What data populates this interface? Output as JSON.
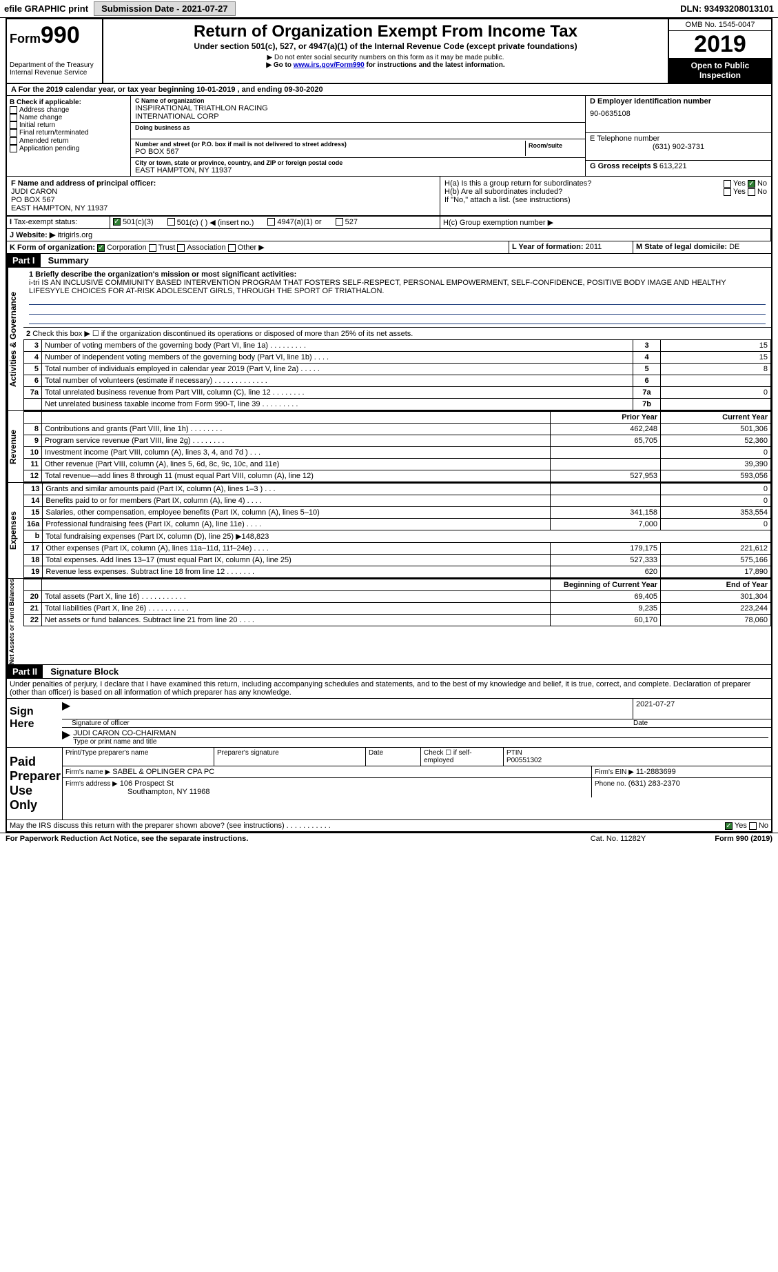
{
  "top": {
    "efile": "efile GRAPHIC print",
    "subdate_lbl": "Submission Date - 2021-07-27",
    "dln": "DLN: 93493208013101"
  },
  "header": {
    "form_word": "Form",
    "form_num": "990",
    "dept": "Department of the Treasury",
    "irs": "Internal Revenue Service",
    "title": "Return of Organization Exempt From Income Tax",
    "subtitle": "Under section 501(c), 527, or 4947(a)(1) of the Internal Revenue Code (except private foundations)",
    "note1": "▶ Do not enter social security numbers on this form as it may be made public.",
    "note2_pre": "▶ Go to ",
    "note2_link": "www.irs.gov/Form990",
    "note2_post": " for instructions and the latest information.",
    "omb": "OMB No. 1545-0047",
    "year": "2019",
    "open": "Open to Public Inspection"
  },
  "period": "A For the 2019 calendar year, or tax year beginning 10-01-2019  , and ending 09-30-2020",
  "sectionB": {
    "lbl": "B Check if applicable:",
    "items": [
      "Address change",
      "Name change",
      "Initial return",
      "Final return/terminated",
      "Amended return",
      "Application pending"
    ]
  },
  "sectionC": {
    "name_lbl": "C Name of organization",
    "name1": "INSPIRATIONAL TRIATHLON RACING",
    "name2": "INTERNATIONAL CORP",
    "dba_lbl": "Doing business as",
    "street_lbl": "Number and street (or P.O. box if mail is not delivered to street address)",
    "room_lbl": "Room/suite",
    "street": "PO BOX 567",
    "city_lbl": "City or town, state or province, country, and ZIP or foreign postal code",
    "city": "EAST HAMPTON, NY  11937"
  },
  "sectionD": {
    "lbl": "D Employer identification number",
    "val": "90-0635108"
  },
  "sectionE": {
    "lbl": "E Telephone number",
    "val": "(631) 902-3731"
  },
  "sectionG": {
    "lbl": "G Gross receipts $",
    "val": "613,221"
  },
  "sectionF": {
    "lbl": "F  Name and address of principal officer:",
    "name": "JUDI CARON",
    "addr1": "PO BOX 567",
    "addr2": "EAST HAMPTON, NY  11937"
  },
  "sectionH": {
    "a": "H(a)  Is this a group return for subordinates?",
    "b": "H(b)  Are all subordinates included?",
    "b_note": "If \"No,\" attach a list. (see instructions)",
    "c": "H(c)  Group exemption number ▶",
    "yes": "Yes",
    "no": "No"
  },
  "sectionI": {
    "lbl": "Tax-exempt status:",
    "opts": [
      "501(c)(3)",
      "501(c) (  ) ◀ (insert no.)",
      "4947(a)(1) or",
      "527"
    ]
  },
  "sectionJ": {
    "lbl": "J Website: ▶",
    "val": "itrigirls.org"
  },
  "sectionK": {
    "lbl": "K Form of organization:",
    "opts": [
      "Corporation",
      "Trust",
      "Association",
      "Other ▶"
    ]
  },
  "sectionL": {
    "lbl": "L Year of formation:",
    "val": "2011"
  },
  "sectionM": {
    "lbl": "M State of legal domicile:",
    "val": "DE"
  },
  "partI": {
    "num": "Part I",
    "title": "Summary"
  },
  "mission_lbl": "1  Briefly describe the organization's mission or most significant activities:",
  "mission": "i-tri IS AN INCLUSIVE COMMIUNITY BASED INTERVENTION PROGRAM THAT FOSTERS SELF-RESPECT, PERSONAL EMPOWERMENT, SELF-CONFIDENCE, POSITIVE BODY IMAGE AND HEALTHY LIFESYYLE CHOICES FOR AT-RISK ADOLESCENT GIRLS, THROUGH THE SPORT OF TRIATHALON.",
  "activities_lbl": "Activities & Governance",
  "revenue_lbl": "Revenue",
  "expenses_lbl": "Expenses",
  "netassets_lbl": "Net Assets or Fund Balances",
  "line2": "Check this box ▶ ☐ if the organization discontinued its operations or disposed of more than 25% of its net assets.",
  "gov_rows": [
    {
      "n": "3",
      "d": "Number of voting members of the governing body (Part VI, line 1a)  .  .  .  .  .  .  .  .  .",
      "r": "3",
      "v": "15"
    },
    {
      "n": "4",
      "d": "Number of independent voting members of the governing body (Part VI, line 1b)   .  .  .  .",
      "r": "4",
      "v": "15"
    },
    {
      "n": "5",
      "d": "Total number of individuals employed in calendar year 2019 (Part V, line 2a)  .  .  .  .  .",
      "r": "5",
      "v": "8"
    },
    {
      "n": "6",
      "d": "Total number of volunteers (estimate if necessary)   .  .  .  .  .  .  .  .  .  .  .  .  .",
      "r": "6",
      "v": ""
    },
    {
      "n": "7a",
      "d": "Total unrelated business revenue from Part VIII, column (C), line 12  .  .  .  .  .  .  .  .",
      "r": "7a",
      "v": "0"
    },
    {
      "n": "",
      "d": "Net unrelated business taxable income from Form 990-T, line 39  .  .  .  .  .  .  .  .  .",
      "r": "7b",
      "v": ""
    }
  ],
  "col_prior": "Prior Year",
  "col_current": "Current Year",
  "rev_rows": [
    {
      "n": "8",
      "d": "Contributions and grants (Part VIII, line 1h)   .  .  .  .  .  .  .  .",
      "p": "462,248",
      "c": "501,306"
    },
    {
      "n": "9",
      "d": "Program service revenue (Part VIII, line 2g)  .  .  .  .  .  .  .  .",
      "p": "65,705",
      "c": "52,360"
    },
    {
      "n": "10",
      "d": "Investment income (Part VIII, column (A), lines 3, 4, and 7d )  .  .  .",
      "p": "",
      "c": "0"
    },
    {
      "n": "11",
      "d": "Other revenue (Part VIII, column (A), lines 5, 6d, 8c, 9c, 10c, and 11e)",
      "p": "",
      "c": "39,390"
    },
    {
      "n": "12",
      "d": "Total revenue—add lines 8 through 11 (must equal Part VIII, column (A), line 12)",
      "p": "527,953",
      "c": "593,056"
    }
  ],
  "exp_rows": [
    {
      "n": "13",
      "d": "Grants and similar amounts paid (Part IX, column (A), lines 1–3 )  .  .  .",
      "p": "",
      "c": "0"
    },
    {
      "n": "14",
      "d": "Benefits paid to or for members (Part IX, column (A), line 4)  .  .  .  .",
      "p": "",
      "c": "0"
    },
    {
      "n": "15",
      "d": "Salaries, other compensation, employee benefits (Part IX, column (A), lines 5–10)",
      "p": "341,158",
      "c": "353,554"
    },
    {
      "n": "16a",
      "d": "Professional fundraising fees (Part IX, column (A), line 11e)  .  .  .  .",
      "p": "7,000",
      "c": "0"
    },
    {
      "n": "b",
      "d": "Total fundraising expenses (Part IX, column (D), line 25) ▶148,823",
      "p": "—",
      "c": "—"
    },
    {
      "n": "17",
      "d": "Other expenses (Part IX, column (A), lines 11a–11d, 11f–24e)  .  .  .  .",
      "p": "179,175",
      "c": "221,612"
    },
    {
      "n": "18",
      "d": "Total expenses. Add lines 13–17 (must equal Part IX, column (A), line 25)",
      "p": "527,333",
      "c": "575,166"
    },
    {
      "n": "19",
      "d": "Revenue less expenses. Subtract line 18 from line 12  .  .  .  .  .  .  .",
      "p": "620",
      "c": "17,890"
    }
  ],
  "col_begin": "Beginning of Current Year",
  "col_end": "End of Year",
  "net_rows": [
    {
      "n": "20",
      "d": "Total assets (Part X, line 16)  .  .  .  .  .  .  .  .  .  .  .",
      "p": "69,405",
      "c": "301,304"
    },
    {
      "n": "21",
      "d": "Total liabilities (Part X, line 26)  .  .  .  .  .  .  .  .  .  .",
      "p": "9,235",
      "c": "223,244"
    },
    {
      "n": "22",
      "d": "Net assets or fund balances. Subtract line 21 from line 20  .  .  .  .",
      "p": "60,170",
      "c": "78,060"
    }
  ],
  "partII": {
    "num": "Part II",
    "title": "Signature Block"
  },
  "penalty": "Under penalties of perjury, I declare that I have examined this return, including accompanying schedules and statements, and to the best of my knowledge and belief, it is true, correct, and complete. Declaration of preparer (other than officer) is based on all information of which preparer has any knowledge.",
  "sign": {
    "here": "Sign Here",
    "sig_lbl": "Signature of officer",
    "date_lbl": "Date",
    "date": "2021-07-27",
    "name": "JUDI CARON  CO-CHAIRMAN",
    "name_lbl": "Type or print name and title"
  },
  "paid": {
    "title": "Paid Preparer Use Only",
    "print_lbl": "Print/Type preparer's name",
    "sig_lbl": "Preparer's signature",
    "date_lbl": "Date",
    "check_lbl": "Check ☐ if self-employed",
    "ptin_lbl": "PTIN",
    "ptin": "P00551302",
    "firm_name_lbl": "Firm's name    ▶",
    "firm_name": "SABEL & OPLINGER CPA PC",
    "firm_ein_lbl": "Firm's EIN ▶",
    "firm_ein": "11-2883699",
    "firm_addr_lbl": "Firm's address ▶",
    "firm_addr1": "106 Prospect St",
    "firm_addr2": "Southampton, NY  11968",
    "phone_lbl": "Phone no.",
    "phone": "(631) 283-2370"
  },
  "discuss": "May the IRS discuss this return with the preparer shown above? (see instructions)   .  .  .  .  .  .  .  .  .  .  .",
  "footer": {
    "left": "For Paperwork Reduction Act Notice, see the separate instructions.",
    "mid": "Cat. No. 11282Y",
    "right": "Form 990 (2019)"
  }
}
